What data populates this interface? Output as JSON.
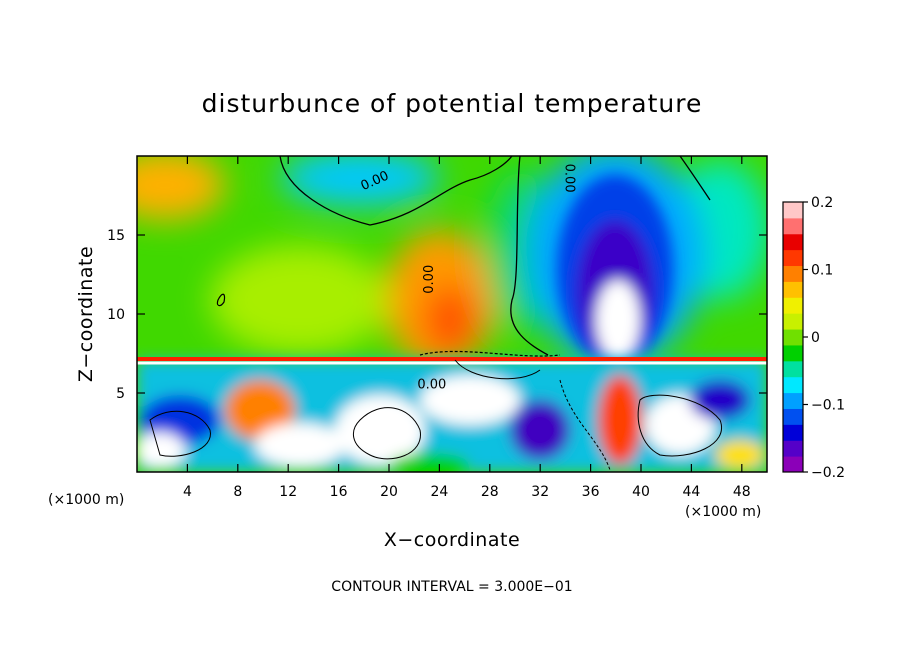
{
  "chart_data": {
    "type": "heatmap",
    "title": "disturbunce of potential temperature",
    "xlabel": "X−coordinate",
    "ylabel": "Z−coordinate",
    "x_unit": "(×1000 m)",
    "y_unit": "(×1000 m)",
    "xlim": [
      0,
      50
    ],
    "ylim": [
      0,
      20
    ],
    "x_ticks": [
      4,
      8,
      12,
      16,
      20,
      24,
      28,
      32,
      36,
      40,
      44,
      48
    ],
    "x_tick_labels": [
      "4",
      "8",
      "12",
      "16",
      "20",
      "24",
      "28",
      "32",
      "36",
      "40",
      "44",
      "48"
    ],
    "y_ticks": [
      5,
      10,
      15
    ],
    "y_tick_labels": [
      "5",
      "10",
      "15"
    ],
    "colorbar": {
      "range": [
        -0.2,
        0.2
      ],
      "ticks": [
        -0.2,
        -0.1,
        0,
        0.1,
        0.2
      ],
      "tick_labels": [
        "−0.2",
        "−0.1",
        "0",
        "0.1",
        "0.2"
      ],
      "colors": [
        "#8b00b8",
        "#5500c8",
        "#0000d8",
        "#0050f0",
        "#00a0ff",
        "#00e8ff",
        "#00e0a0",
        "#00d000",
        "#70e000",
        "#c8f000",
        "#f0f000",
        "#ffc000",
        "#ff8000",
        "#ff3800",
        "#e80000",
        "#ff7070",
        "#ffc8c8"
      ]
    },
    "contour_labels": [
      {
        "text": "0.00",
        "x": 19,
        "y": 18.2,
        "rotate": -24
      },
      {
        "text": "0.00",
        "x": 34,
        "y": 18.6,
        "rotate": 90
      },
      {
        "text": "0.00",
        "x": 23.5,
        "y": 12.2,
        "rotate": -90
      },
      {
        "text": "0.00",
        "x": 23.4,
        "y": 5.3,
        "rotate": 0
      }
    ],
    "contour_interval_note": "CONTOUR INTERVAL = 3.000E−01",
    "grid": false,
    "legend": "right"
  }
}
